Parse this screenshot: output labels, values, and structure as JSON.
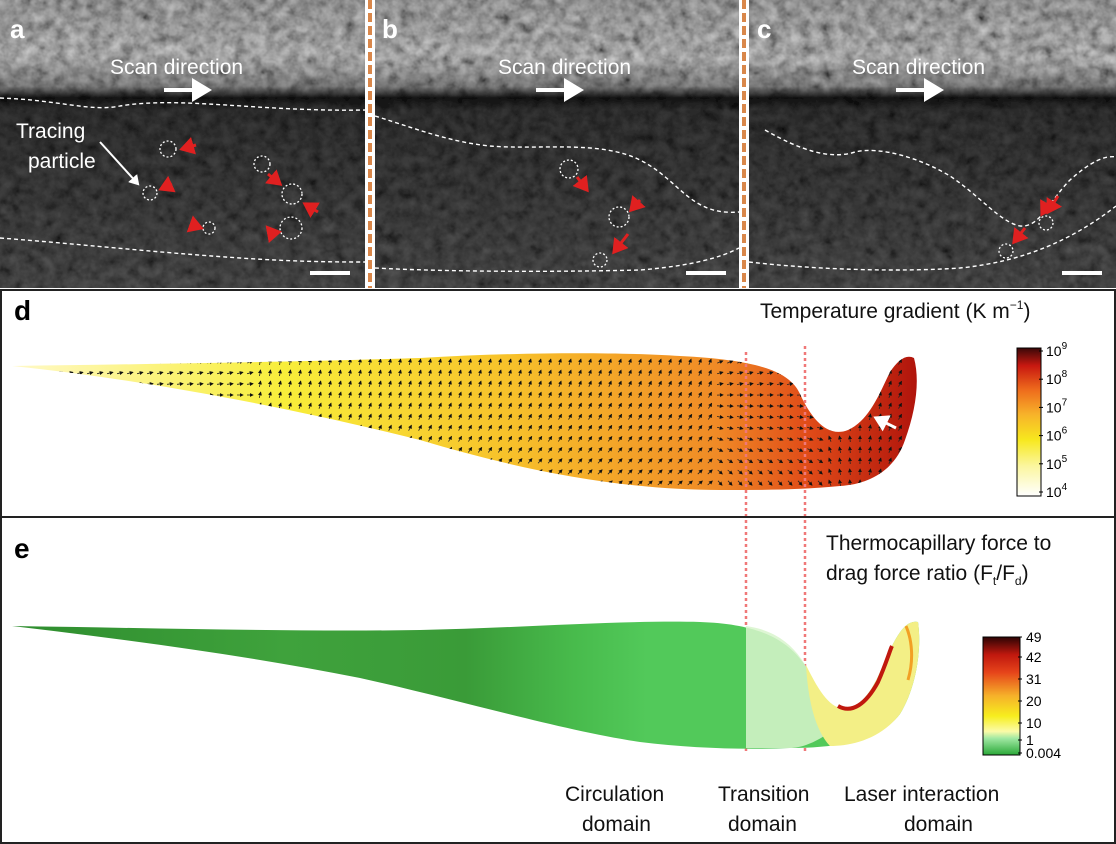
{
  "panels": {
    "a": {
      "label": "a",
      "scan": "Scan direction",
      "tracing_line1": "Tracing",
      "tracing_line2": "particle"
    },
    "b": {
      "label": "b",
      "scan": "Scan direction"
    },
    "c": {
      "label": "c",
      "scan": "Scan direction"
    },
    "d": {
      "label": "d",
      "title_text": "Temperature gradient (K m",
      "title_exp": "−1",
      "title_close": ")",
      "colorbar_base": "10",
      "colorbar_exponents": [
        "9",
        "8",
        "7",
        "6",
        "5",
        "4"
      ]
    },
    "e": {
      "label": "e",
      "title_line1": "Thermocapillary force to",
      "title_line2_prefix": "drag force ratio (F",
      "sub_t": "t",
      "slash": "/F",
      "sub_d": "d",
      "title_line2_close": ")",
      "colorbar_ticks": [
        "49",
        "42",
        "31",
        "20",
        "10",
        "1",
        "0.004"
      ]
    }
  },
  "domains": {
    "circulation": [
      "Circulation",
      "domain"
    ],
    "transition": [
      "Transition",
      "domain"
    ],
    "laser": [
      "Laser interaction",
      "domain"
    ]
  },
  "colors": {
    "separator": "#d9874a",
    "red_arrow": "#e02020",
    "divider_dotted": "#f07878"
  }
}
